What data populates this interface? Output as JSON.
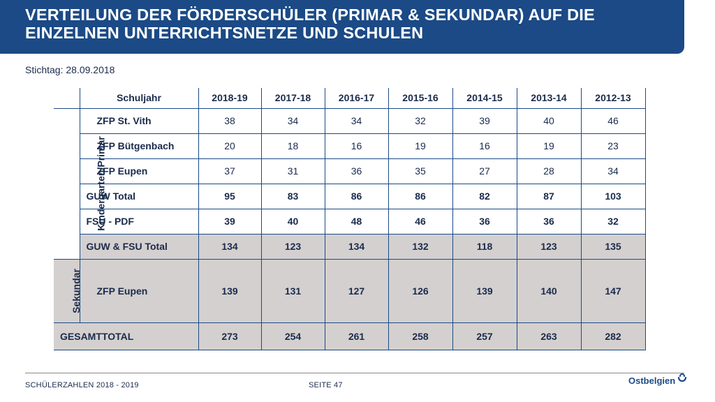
{
  "title_lines": [
    "VERTEILUNG DER FÖRDERSCHÜLER (PRIMAR & SEKUNDAR) AUF DIE",
    "EINZELNEN UNTERRICHTSNETZE UND SCHULEN"
  ],
  "subtitle": "Stichtag: 28.09.2018",
  "table": {
    "header_label": "Schuljahr",
    "years": [
      "2018-19",
      "2017-18",
      "2016-17",
      "2015-16",
      "2014-15",
      "2013-14",
      "2012-13"
    ],
    "group_primar": "Kindergarten/Primar",
    "group_sekundar": "Sekundar",
    "rows": [
      {
        "label": "ZFP St. Vith",
        "values": [
          "38",
          "34",
          "34",
          "32",
          "39",
          "40",
          "46"
        ]
      },
      {
        "label": "ZFP Bütgenbach",
        "values": [
          "20",
          "18",
          "16",
          "19",
          "16",
          "19",
          "23"
        ]
      },
      {
        "label": "ZFP Eupen",
        "values": [
          "37",
          "31",
          "36",
          "35",
          "27",
          "28",
          "34"
        ]
      },
      {
        "label": "GUW Total",
        "values": [
          "95",
          "83",
          "86",
          "86",
          "82",
          "87",
          "103"
        ]
      },
      {
        "label": "FSU - PDF",
        "values": [
          "39",
          "40",
          "48",
          "46",
          "36",
          "36",
          "32"
        ]
      },
      {
        "label": "GUW & FSU Total",
        "values": [
          "134",
          "123",
          "134",
          "132",
          "118",
          "123",
          "135"
        ]
      },
      {
        "label": "ZFP Eupen",
        "values": [
          "139",
          "131",
          "127",
          "126",
          "139",
          "140",
          "147"
        ]
      },
      {
        "label": "GESAMTTOTAL",
        "values": [
          "273",
          "254",
          "261",
          "258",
          "257",
          "263",
          "282"
        ]
      }
    ]
  },
  "footer": {
    "left": "SCHÜLERZAHLEN 2018 - 2019",
    "center": "SEITE 47",
    "logo": "Ostbelgien"
  },
  "colors": {
    "brand": "#1b4a86",
    "row_shade": "#d4d0cf",
    "text": "#1a2b4c"
  }
}
